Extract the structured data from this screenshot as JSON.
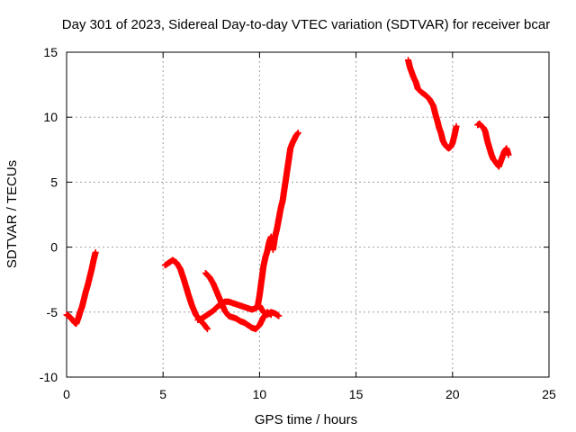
{
  "chart_data": {
    "type": "scatter",
    "title": "Day 301 of 2023, Sidereal Day-to-day VTEC variation (SDTVAR) for receiver bcar",
    "xlabel": "GPS time / hours",
    "ylabel": "SDTVAR / TECUs",
    "xlim": [
      0,
      25
    ],
    "ylim": [
      -10,
      15
    ],
    "x_ticks": [
      0,
      5,
      10,
      15,
      20,
      25
    ],
    "y_ticks": [
      -10,
      -5,
      0,
      5,
      10,
      15
    ],
    "x_tick_labels": [
      "0",
      "5",
      "10",
      "15",
      "20",
      "25"
    ],
    "y_tick_labels": [
      "-10",
      "-5",
      "0",
      "5",
      "10",
      "15"
    ],
    "grid": true,
    "marker": "plus",
    "color": "#ff0000",
    "segments": [
      {
        "x": [
          0.0,
          0.1,
          0.2,
          0.3,
          0.4,
          0.5,
          0.6,
          0.7,
          0.8,
          0.9,
          1.0,
          1.1,
          1.2,
          1.3,
          1.4,
          1.5
        ],
        "y": [
          -5.2,
          -5.3,
          -5.4,
          -5.6,
          -5.8,
          -5.9,
          -5.5,
          -5.0,
          -4.6,
          -4.0,
          -3.4,
          -2.9,
          -2.3,
          -1.7,
          -1.0,
          -0.4
        ]
      },
      {
        "x": [
          5.1,
          5.3,
          5.5,
          5.7,
          5.9,
          6.1,
          6.3,
          6.5,
          6.7,
          6.9,
          7.1,
          7.3
        ],
        "y": [
          -1.4,
          -1.2,
          -1.0,
          -1.2,
          -1.7,
          -2.6,
          -3.6,
          -4.5,
          -5.2,
          -5.6,
          -5.9,
          -6.3
        ]
      },
      {
        "x": [
          6.8,
          7.0,
          7.2,
          7.4,
          7.6,
          7.8,
          8.0,
          8.2,
          8.4,
          8.6,
          8.8,
          9.0,
          9.2,
          9.4,
          9.6,
          9.8,
          10.0,
          10.2,
          10.4,
          10.6,
          10.8,
          11.0
        ],
        "y": [
          -5.6,
          -5.5,
          -5.3,
          -5.1,
          -4.9,
          -4.6,
          -4.4,
          -4.2,
          -4.2,
          -4.3,
          -4.4,
          -4.5,
          -4.6,
          -4.7,
          -4.8,
          -4.7,
          -4.5,
          -5.0,
          -5.2,
          -5.0,
          -5.1,
          -5.3
        ]
      },
      {
        "x": [
          7.2,
          7.4,
          7.6,
          7.8,
          8.0,
          8.2,
          8.4,
          8.6,
          8.8,
          9.0,
          9.2,
          9.4,
          9.6,
          9.8,
          10.0,
          10.2,
          10.4,
          10.6
        ],
        "y": [
          -2.0,
          -2.3,
          -2.8,
          -3.5,
          -4.2,
          -4.9,
          -5.3,
          -5.4,
          -5.5,
          -5.7,
          -5.8,
          -6.0,
          -6.2,
          -6.3,
          -6.0,
          -5.4,
          -5.0,
          -5.2
        ]
      },
      {
        "x": [
          9.9,
          10.0,
          10.1,
          10.2,
          10.3,
          10.4,
          10.5,
          10.6,
          10.7,
          10.8,
          10.9,
          11.0,
          11.1,
          11.2,
          11.3,
          11.4,
          11.5,
          11.6,
          11.7,
          11.8,
          11.9,
          12.0
        ],
        "y": [
          -4.6,
          -3.7,
          -2.6,
          -1.5,
          -0.8,
          -0.3,
          0.4,
          0.8,
          -0.2,
          0.8,
          1.4,
          2.2,
          3.0,
          3.6,
          4.6,
          5.6,
          6.6,
          7.6,
          8.0,
          8.3,
          8.6,
          8.8
        ]
      },
      {
        "x": [
          17.7,
          17.8,
          17.9,
          18.0,
          18.1,
          18.2,
          18.4,
          18.6,
          18.8,
          19.0,
          19.1,
          19.2,
          19.3,
          19.4,
          19.5,
          19.6,
          19.7,
          19.8,
          19.9,
          20.0,
          20.1,
          20.2
        ],
        "y": [
          14.4,
          13.8,
          13.4,
          13.0,
          12.7,
          12.2,
          11.9,
          11.7,
          11.4,
          10.9,
          10.3,
          9.8,
          9.2,
          8.8,
          8.2,
          7.9,
          7.7,
          7.6,
          7.7,
          8.0,
          8.6,
          9.3
        ]
      },
      {
        "x": [
          21.3,
          21.4,
          21.5,
          21.6,
          21.7,
          21.8,
          21.9,
          22.0,
          22.1,
          22.2,
          22.3,
          22.4,
          22.5,
          22.6,
          22.7,
          22.8,
          22.9
        ],
        "y": [
          9.4,
          9.5,
          9.3,
          9.2,
          8.9,
          8.2,
          7.7,
          7.2,
          6.8,
          6.6,
          6.4,
          6.2,
          6.6,
          7.0,
          7.4,
          7.6,
          7.1
        ]
      }
    ]
  }
}
